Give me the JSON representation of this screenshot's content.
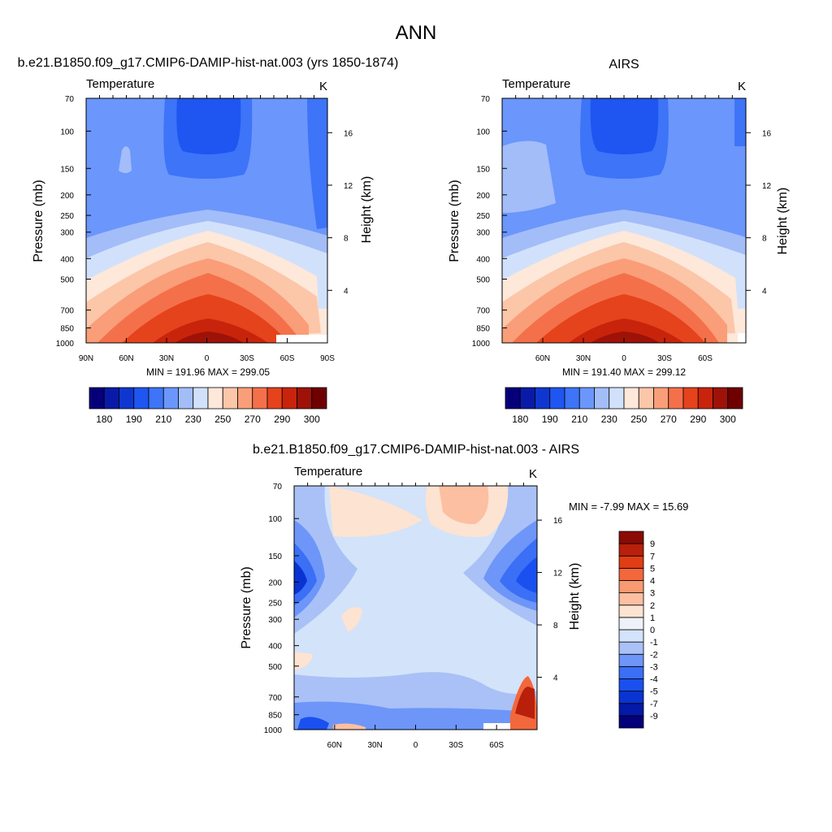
{
  "main_title": "ANN",
  "colors": {
    "abs_palette": [
      "#05007a",
      "#0a1aa8",
      "#0f37d0",
      "#1f55f0",
      "#3d74f8",
      "#6b96fb",
      "#a3bdf9",
      "#d2e1fb",
      "#fde8da",
      "#fcc6a9",
      "#f99e78",
      "#f4704a",
      "#e4431c",
      "#c8240c",
      "#9e1208",
      "#6e0000"
    ],
    "diff_palette": [
      "#04007b",
      "#0419a8",
      "#0a34d2",
      "#1a50f0",
      "#3a6ff6",
      "#6d96f8",
      "#a9c1f6",
      "#d3e3fa",
      "#eef2f8",
      "#fde3d1",
      "#fcbfa2",
      "#f89a72",
      "#f3673c",
      "#e03d14",
      "#b8200b",
      "#8a0a04"
    ]
  },
  "chart_data": [
    {
      "type": "contour",
      "id": "model",
      "title": "b.e21.B1850.f09_g17.CMIP6-DAMIP-hist-nat.003 (yrs 1850-1874)",
      "variable": "Temperature",
      "units": "K",
      "ylabel": "Pressure (mb)",
      "ylabel_right": "Height (km)",
      "x_ticks": [
        "90N",
        "60N",
        "30N",
        "0",
        "30S",
        "60S",
        "90S"
      ],
      "x_range": [
        90,
        -90
      ],
      "y_ticks": [
        "70",
        "100",
        "150",
        "200",
        "250",
        "300",
        "400",
        "500",
        "700",
        "850",
        "1000"
      ],
      "y_range_mb": [
        70,
        1000
      ],
      "height_ticks": [
        "16",
        "12",
        "8",
        "4"
      ],
      "stats": "MIN = 191.96  MAX = 299.05",
      "min": 191.96,
      "max": 299.05,
      "colorbar_labels": [
        "180",
        "190",
        "210",
        "230",
        "250",
        "270",
        "290",
        "300"
      ]
    },
    {
      "type": "contour",
      "id": "obs",
      "title": "AIRS",
      "variable": "Temperature",
      "units": "K",
      "ylabel": "Pressure (mb)",
      "ylabel_right": "Height (km)",
      "x_ticks": [
        "60N",
        "30N",
        "0",
        "30S",
        "60S"
      ],
      "x_range": [
        90,
        -90
      ],
      "y_ticks": [
        "70",
        "100",
        "150",
        "200",
        "250",
        "300",
        "400",
        "500",
        "700",
        "850",
        "1000"
      ],
      "y_range_mb": [
        70,
        1000
      ],
      "height_ticks": [
        "16",
        "12",
        "8",
        "4"
      ],
      "stats": "MIN = 191.40  MAX = 299.12",
      "min": 191.4,
      "max": 299.12,
      "colorbar_labels": [
        "180",
        "190",
        "210",
        "230",
        "250",
        "270",
        "290",
        "300"
      ]
    },
    {
      "type": "contour",
      "id": "diff",
      "title": "b.e21.B1850.f09_g17.CMIP6-DAMIP-hist-nat.003 - AIRS",
      "variable": "Temperature",
      "units": "K",
      "ylabel": "Pressure (mb)",
      "ylabel_right": "Height (km)",
      "x_ticks": [
        "60N",
        "30N",
        "0",
        "30S",
        "60S"
      ],
      "x_range": [
        90,
        -90
      ],
      "y_ticks": [
        "70",
        "100",
        "150",
        "200",
        "250",
        "300",
        "400",
        "500",
        "700",
        "850",
        "1000"
      ],
      "y_range_mb": [
        70,
        1000
      ],
      "height_ticks": [
        "16",
        "12",
        "8",
        "4"
      ],
      "stats": "MIN =  -7.99  MAX =  15.69",
      "min": -7.99,
      "max": 15.69,
      "colorbar_labels": [
        "9",
        "7",
        "5",
        "4",
        "3",
        "2",
        "1",
        "0",
        "-1",
        "-2",
        "-3",
        "-4",
        "-5",
        "-7",
        "-9"
      ]
    }
  ]
}
